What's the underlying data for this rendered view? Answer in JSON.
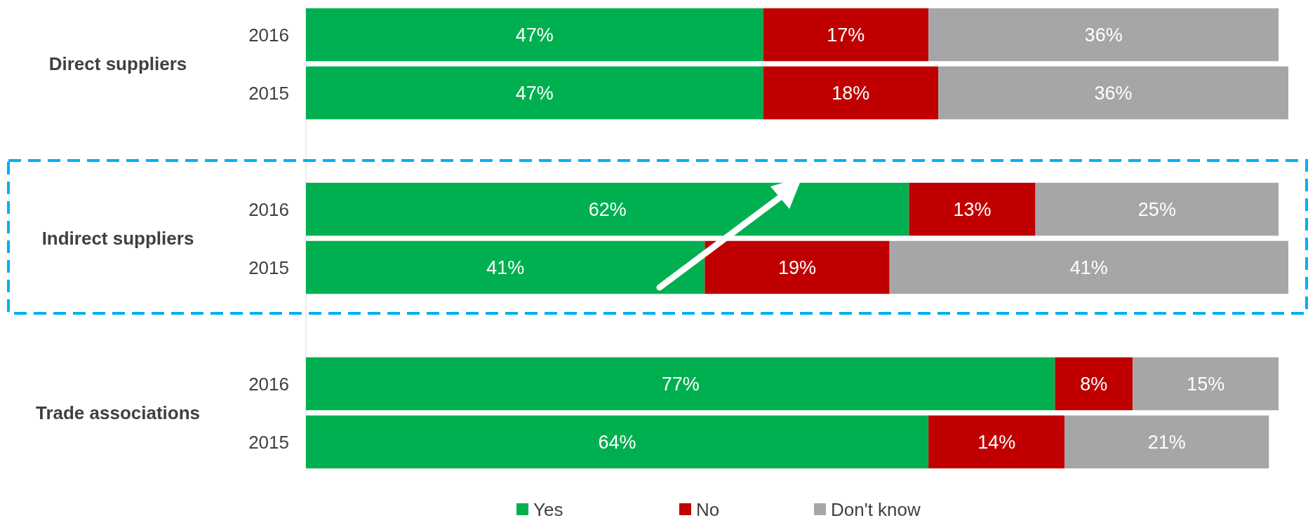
{
  "chart_data": {
    "type": "bar",
    "orientation": "horizontal",
    "stacked": true,
    "categories": [
      "2016",
      "2015",
      null,
      "2016",
      "2015",
      null,
      "2016",
      "2015"
    ],
    "series": [
      {
        "name": "Yes",
        "color": "#00b050",
        "values": [
          47,
          47,
          null,
          62,
          41,
          null,
          77,
          64
        ],
        "value_labels": [
          "47%",
          "47%",
          null,
          "62%",
          "41%",
          null,
          "77%",
          "64%"
        ]
      },
      {
        "name": "No",
        "color": "#c00000",
        "values": [
          17,
          18,
          null,
          13,
          19,
          null,
          8,
          14
        ],
        "value_labels": [
          "17%",
          "18%",
          null,
          "13%",
          "19%",
          null,
          "8%",
          "14%"
        ]
      },
      {
        "name": "Don't know",
        "color": "#a6a6a8",
        "values": [
          36,
          36,
          null,
          25,
          41,
          null,
          15,
          21
        ],
        "value_labels": [
          "36%",
          "36%",
          null,
          "25%",
          "41%",
          null,
          "15%",
          "21%"
        ]
      }
    ],
    "annotations": [
      "Direct suppliers",
      "Indirect suppliers",
      "Trade associations"
    ],
    "legend": "bottom"
  }
}
